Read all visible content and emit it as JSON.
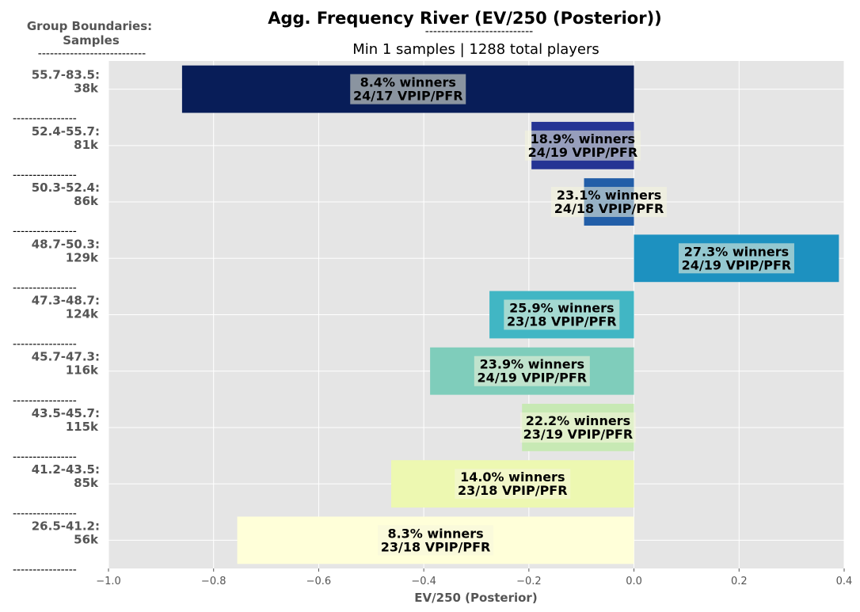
{
  "chart_data": {
    "type": "bar",
    "orientation": "horizontal",
    "title": "Agg. Frequency River (EV/250 (Posterior))",
    "title_underline": "---------------------------",
    "subtitle": "Min 1 samples | 1288 total players",
    "ylabel_header_line1": "Group Boundaries:",
    "ylabel_header_line2": "Samples",
    "ylabel_header_underline": "---------------------------",
    "separator": "----------------",
    "xlabel": "EV/250 (Posterior)",
    "xlim": [
      -1.0,
      0.4
    ],
    "xticks": [
      -1.0,
      -0.8,
      -0.6,
      -0.4,
      -0.2,
      0.0,
      0.2,
      0.4
    ],
    "xtick_labels": [
      "−1.0",
      "−0.8",
      "−0.6",
      "−0.4",
      "−0.2",
      "0.0",
      "0.2",
      "0.4"
    ],
    "grid": true,
    "background": "#e5e5e5",
    "bars": [
      {
        "range": "55.7-83.5:",
        "samples": "38k",
        "value": -0.86,
        "winners": "8.4% winners",
        "vpip_pfr": "24/17 VPIP/PFR",
        "color": "#081d58"
      },
      {
        "range": "52.4-55.7:",
        "samples": "81k",
        "value": -0.195,
        "winners": "18.9% winners",
        "vpip_pfr": "24/19 VPIP/PFR",
        "color": "#253494"
      },
      {
        "range": "50.3-52.4:",
        "samples": "86k",
        "value": -0.095,
        "winners": "23.1% winners",
        "vpip_pfr": "24/18 VPIP/PFR",
        "color": "#225ea8"
      },
      {
        "range": "48.7-50.3:",
        "samples": "129k",
        "value": 0.39,
        "winners": "27.3% winners",
        "vpip_pfr": "24/19 VPIP/PFR",
        "color": "#1d91c0"
      },
      {
        "range": "47.3-48.7:",
        "samples": "124k",
        "value": -0.275,
        "winners": "25.9% winners",
        "vpip_pfr": "23/18 VPIP/PFR",
        "color": "#41b6c4"
      },
      {
        "range": "45.7-47.3:",
        "samples": "116k",
        "value": -0.388,
        "winners": "23.9% winners",
        "vpip_pfr": "24/19 VPIP/PFR",
        "color": "#7fcdbb"
      },
      {
        "range": "43.5-45.7:",
        "samples": "115k",
        "value": -0.213,
        "winners": "22.2% winners",
        "vpip_pfr": "23/19 VPIP/PFR",
        "color": "#c7e9b4"
      },
      {
        "range": "41.2-43.5:",
        "samples": "85k",
        "value": -0.462,
        "winners": "14.0% winners",
        "vpip_pfr": "23/18 VPIP/PFR",
        "color": "#edf8b1"
      },
      {
        "range": "26.5-41.2:",
        "samples": "56k",
        "value": -0.755,
        "winners": "8.3% winners",
        "vpip_pfr": "23/18 VPIP/PFR",
        "color": "#ffffd9"
      }
    ]
  }
}
